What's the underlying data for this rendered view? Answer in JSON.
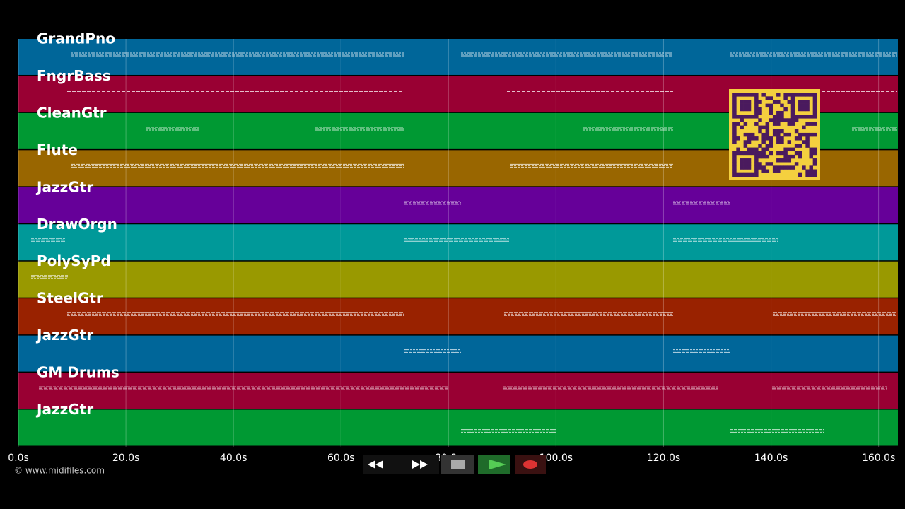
{
  "tracks": [
    {
      "name": "GrandPno",
      "color": "#006699"
    },
    {
      "name": "FngrBass",
      "color": "#990033"
    },
    {
      "name": "CleanGtr",
      "color": "#009933"
    },
    {
      "name": "Flute",
      "color": "#996600"
    },
    {
      "name": "JazzGtr",
      "color": "#660099"
    },
    {
      "name": "DrawOrgn",
      "color": "#009999"
    },
    {
      "name": "PolySyPd",
      "color": "#999900"
    },
    {
      "name": "SteelGtr",
      "color": "#992200"
    },
    {
      "name": "JazzGtr",
      "color": "#006699"
    },
    {
      "name": "GM Drums",
      "color": "#990033"
    },
    {
      "name": "JazzGtr",
      "color": "#009933"
    }
  ],
  "time_axis": {
    "xlim": [
      0,
      163.6
    ],
    "ticks": [
      {
        "value": 0,
        "label": "0.0s"
      },
      {
        "value": 20,
        "label": "20.0s"
      },
      {
        "value": 40,
        "label": "40.0s"
      },
      {
        "value": 60,
        "label": "60.0s"
      },
      {
        "value": 80,
        "label": "80.0s"
      },
      {
        "value": 100,
        "label": "100.0s"
      },
      {
        "value": 120,
        "label": "120.0s"
      },
      {
        "value": 140,
        "label": "140.0s"
      },
      {
        "value": 160,
        "label": "160.0s"
      }
    ]
  },
  "copyright": "© www.midifiles.com"
}
